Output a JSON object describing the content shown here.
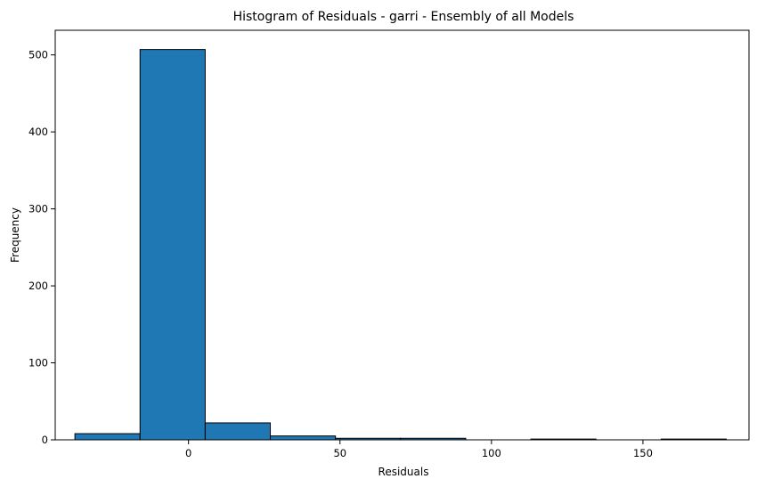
{
  "chart_data": {
    "type": "bar",
    "title": "Histogram of Residuals - garri  - Ensembly of all Models",
    "xlabel": "Residuals",
    "ylabel": "Frequency",
    "xlim": [
      -44,
      185
    ],
    "ylim": [
      0,
      532
    ],
    "xticks": [
      0,
      50,
      100,
      150
    ],
    "yticks": [
      0,
      100,
      200,
      300,
      400,
      500
    ],
    "grid": false,
    "bar_color": "#1f77b4",
    "edge_color": "#000000",
    "bins": [
      {
        "x0": -37.5,
        "x1": -16.0,
        "count": 8
      },
      {
        "x0": -16.0,
        "x1": 5.5,
        "count": 507
      },
      {
        "x0": 5.5,
        "x1": 27.0,
        "count": 22
      },
      {
        "x0": 27.0,
        "x1": 48.5,
        "count": 5
      },
      {
        "x0": 48.5,
        "x1": 70.0,
        "count": 2
      },
      {
        "x0": 70.0,
        "x1": 91.5,
        "count": 2
      },
      {
        "x0": 91.5,
        "x1": 113.0,
        "count": 0
      },
      {
        "x0": 113.0,
        "x1": 134.5,
        "count": 1
      },
      {
        "x0": 134.5,
        "x1": 156.0,
        "count": 0
      },
      {
        "x0": 156.0,
        "x1": 177.5,
        "count": 1
      }
    ]
  }
}
